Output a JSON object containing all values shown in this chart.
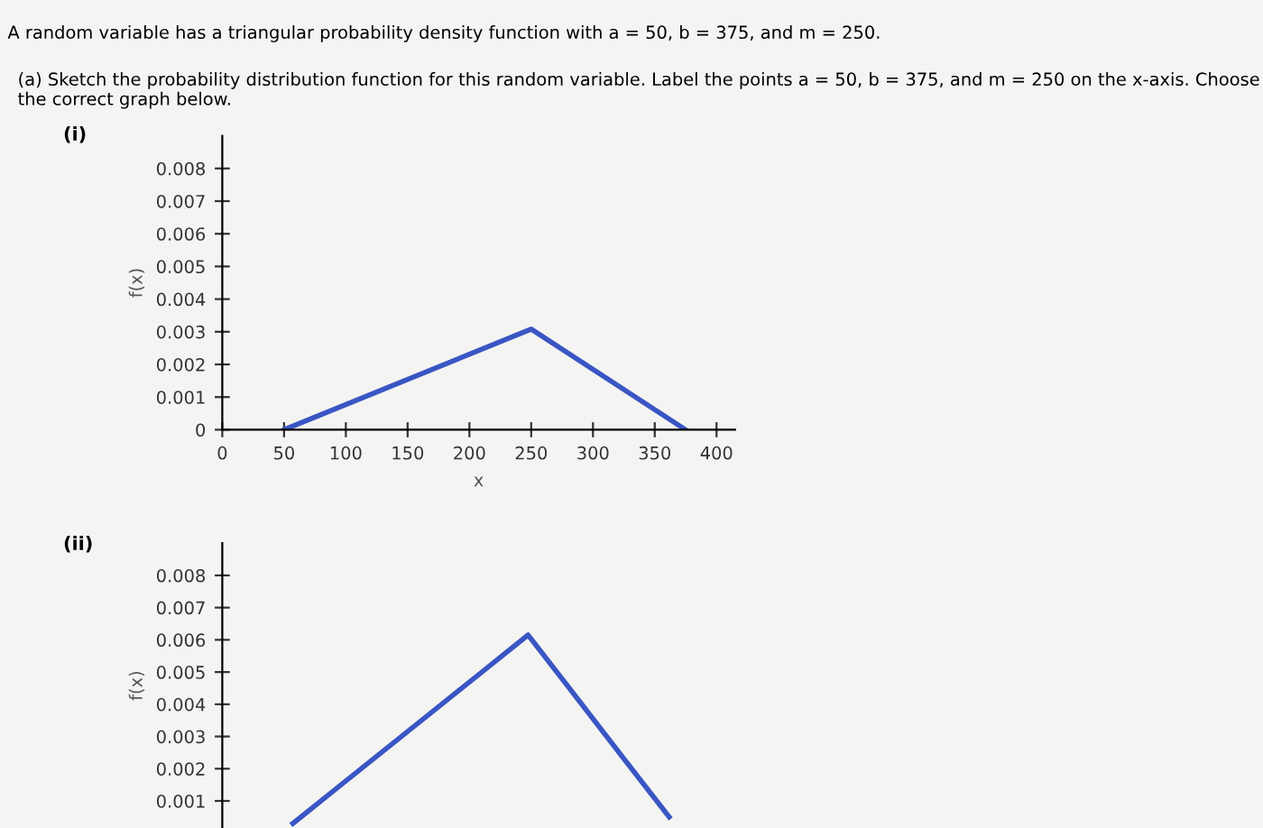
{
  "chart_data": [
    {
      "type": "line",
      "title": "(i)",
      "xlabel": "x",
      "ylabel": "f(x)",
      "annotations": [
        "A random variable has a triangular probability density function with a = 50, b = 375, and m = 250.",
        "(a) Sketch the probability distribution function for this random variable. Label the points a = 50, b = 375, and m = 250 on the x-axis. Choose the correct graph below."
      ],
      "series": [
        {
          "color": "#3a56c4",
          "x": [
            50,
            250,
            375
          ],
          "values": [
            0,
            0.00308,
            0
          ]
        }
      ],
      "xlim": [
        0,
        415
      ],
      "xticks": [
        0,
        50,
        100,
        150,
        200,
        250,
        300,
        350,
        400
      ],
      "ylim": [
        0,
        0.009
      ],
      "yticks": [
        0,
        0.001,
        0.002,
        0.003,
        0.004,
        0.005,
        0.006,
        0.007,
        0.008
      ],
      "grid": false,
      "legend": false
    },
    {
      "type": "line",
      "title": "(ii)",
      "ylabel": "f(x)",
      "categories": [
        null,
        null,
        null,
        null,
        null,
        null,
        null,
        null,
        null
      ],
      "series": [
        {
          "color": "#3a56c4",
          "values": [
            0.0003,
            0.00147,
            0.00264,
            0.00381,
            0.00498,
            0.00615,
            0.00427,
            0.00238,
            0.0005
          ]
        }
      ],
      "ylim": [
        0.00016,
        0.009
      ],
      "yticks": [
        0.001,
        0.002,
        0.003,
        0.004,
        0.005,
        0.006,
        0.007,
        0.008
      ],
      "tick_labels": "y",
      "grid": false,
      "legend": false
    }
  ]
}
